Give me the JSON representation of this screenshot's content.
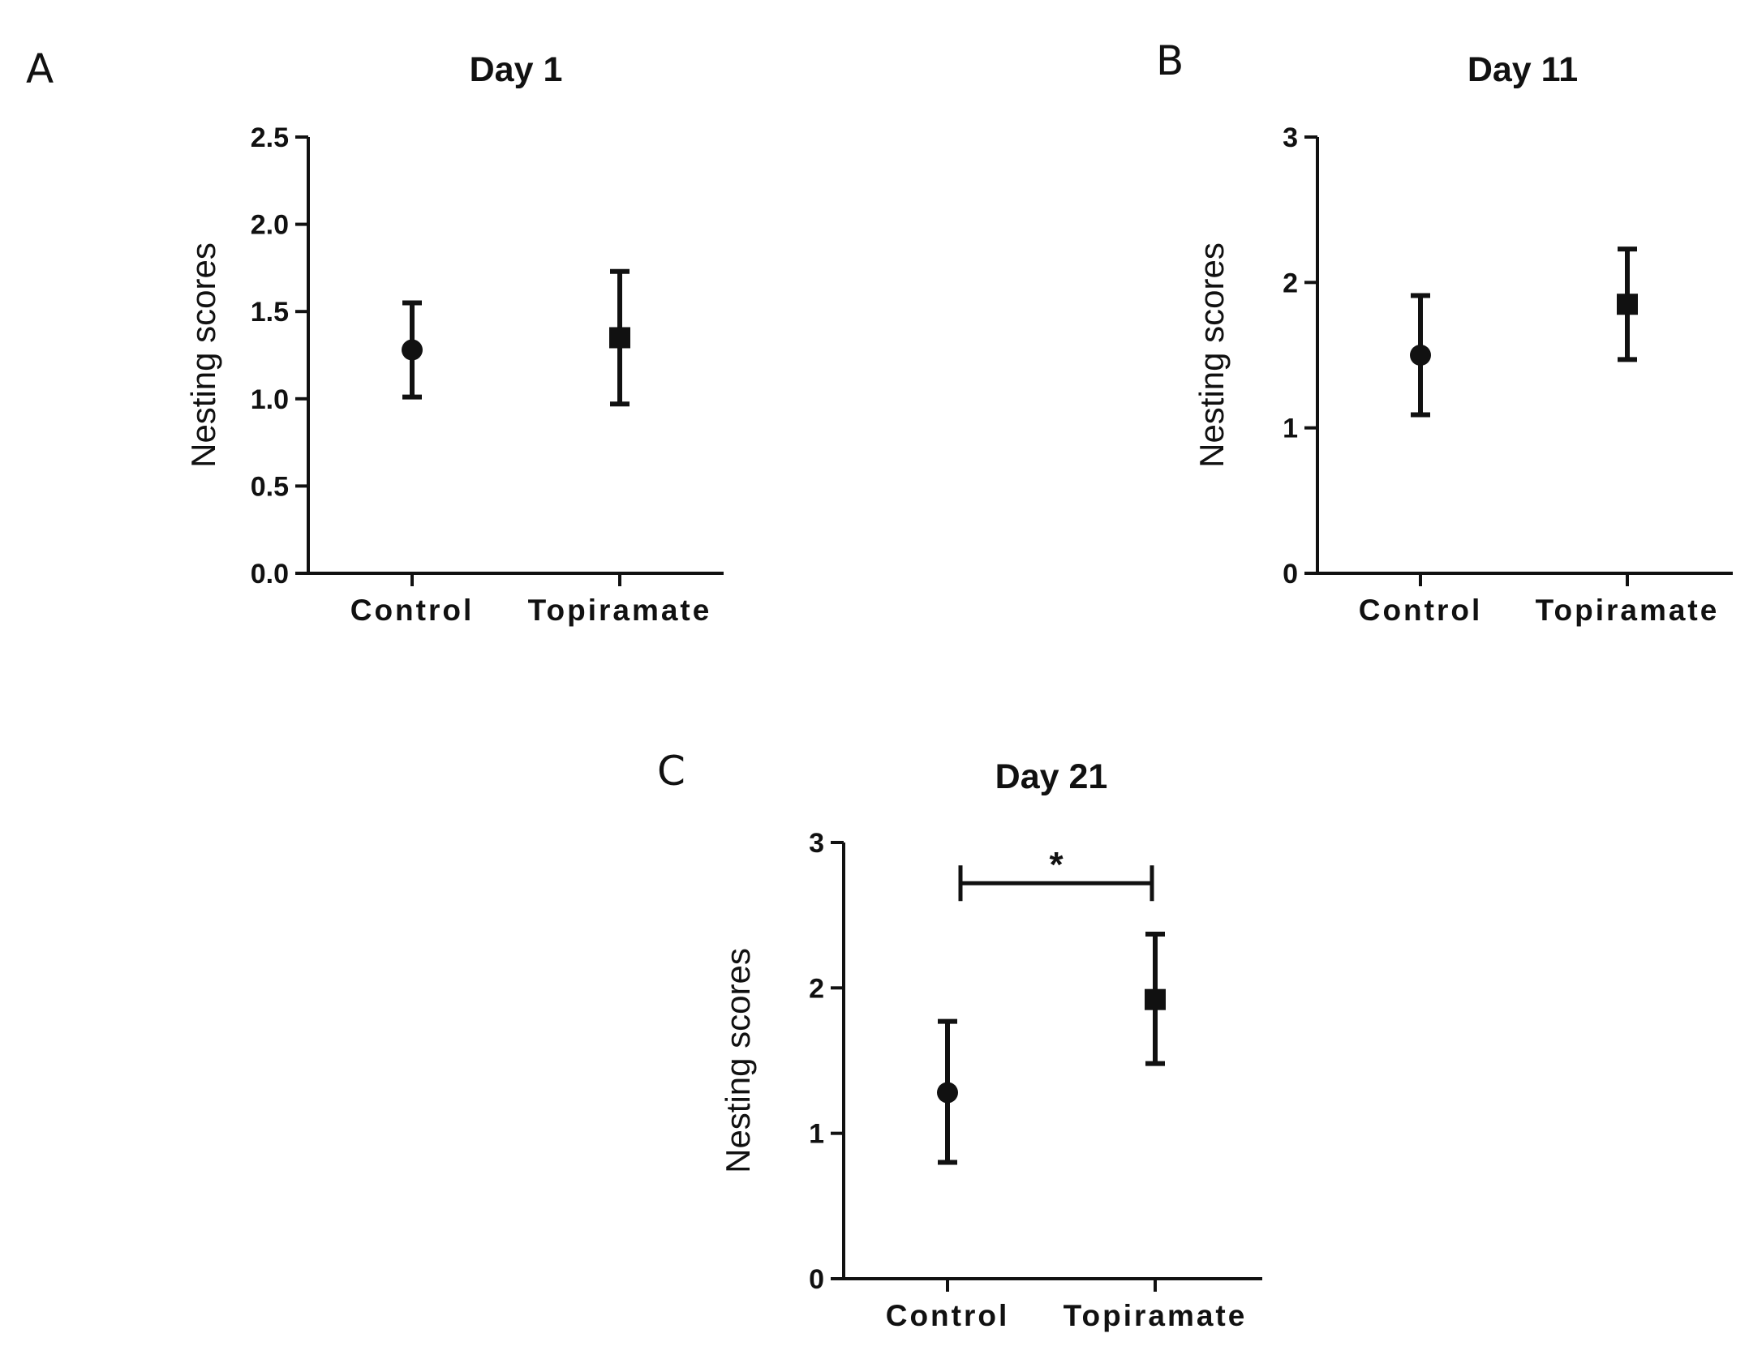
{
  "chart_data": [
    {
      "panel": "A",
      "type": "scatter",
      "title": "Day 1",
      "xlabel": "",
      "ylabel": "Nesting scores",
      "categories": [
        "Control",
        "Topiramate"
      ],
      "yticks": [
        "0.0",
        "0.5",
        "1.0",
        "1.5",
        "2.0",
        "2.5"
      ],
      "ylim": [
        0,
        2.5
      ],
      "series": [
        {
          "name": "Control",
          "marker": "circle",
          "mean": 1.28,
          "lower": 1.01,
          "upper": 1.55
        },
        {
          "name": "Topiramate",
          "marker": "square",
          "mean": 1.35,
          "lower": 0.97,
          "upper": 1.73
        }
      ]
    },
    {
      "panel": "B",
      "type": "scatter",
      "title": "Day 11",
      "xlabel": "",
      "ylabel": "Nesting scores",
      "categories": [
        "Control",
        "Topiramate"
      ],
      "yticks": [
        "0",
        "1",
        "2",
        "3"
      ],
      "ylim": [
        0,
        3
      ],
      "series": [
        {
          "name": "Control",
          "marker": "circle",
          "mean": 1.5,
          "lower": 1.09,
          "upper": 1.91
        },
        {
          "name": "Topiramate",
          "marker": "square",
          "mean": 1.85,
          "lower": 1.47,
          "upper": 2.23
        }
      ]
    },
    {
      "panel": "C",
      "type": "scatter",
      "title": "Day 21",
      "xlabel": "",
      "ylabel": "Nesting scores",
      "categories": [
        "Control",
        "Topiramate"
      ],
      "yticks": [
        "0",
        "1",
        "2",
        "3"
      ],
      "ylim": [
        0,
        3
      ],
      "series": [
        {
          "name": "Control",
          "marker": "circle",
          "mean": 1.28,
          "lower": 0.8,
          "upper": 1.77
        },
        {
          "name": "Topiramate",
          "marker": "square",
          "mean": 1.92,
          "lower": 1.48,
          "upper": 2.37
        }
      ],
      "significance": {
        "label": "*",
        "between": [
          "Control",
          "Topiramate"
        ],
        "y": 2.72
      }
    }
  ]
}
